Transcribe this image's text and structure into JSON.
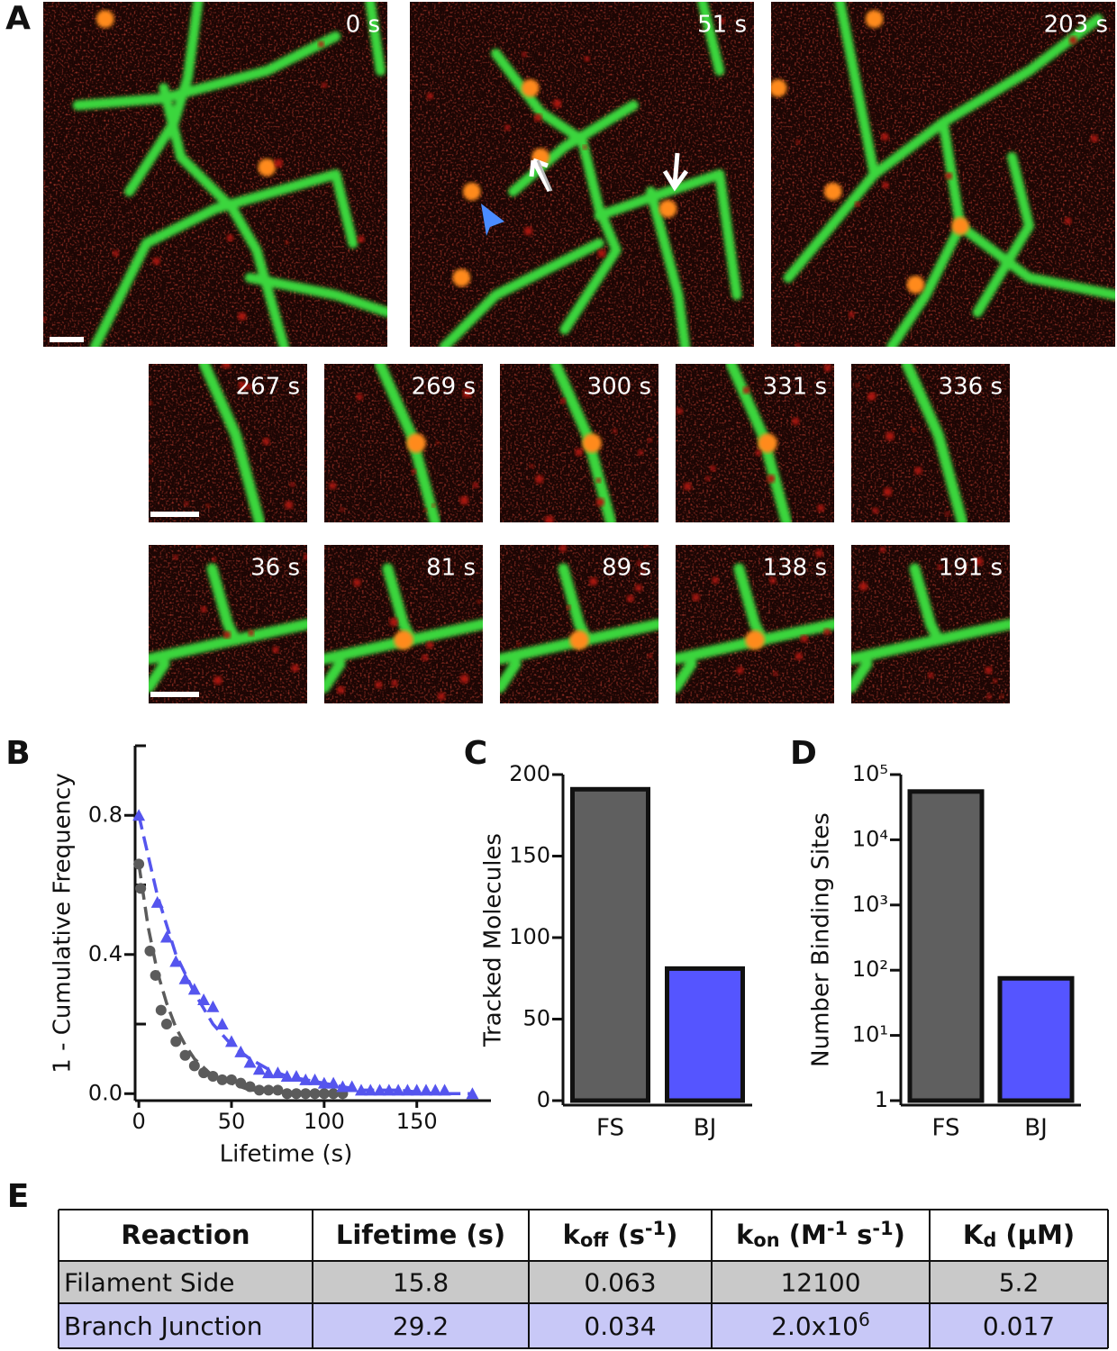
{
  "panels": [
    "A",
    "B",
    "C",
    "D",
    "E"
  ],
  "images": {
    "row1": [
      "0 s",
      "51 s",
      "203 s"
    ],
    "row2": [
      "267 s",
      "269 s",
      "300 s",
      "331 s",
      "336 s"
    ],
    "row3": [
      "36 s",
      "81 s",
      "89 s",
      "138 s",
      "191 s"
    ]
  },
  "chart_data": [
    {
      "type": "scatter",
      "x_label": "Lifetime (s)",
      "y_label": "1 - Cumulative Frequency",
      "xlim": [
        -2,
        190
      ],
      "xticks": [
        0,
        50,
        100,
        150
      ],
      "ylim": [
        -0.02,
        1.0
      ],
      "yticks": [
        {
          "value": 0,
          "label": "0.0"
        },
        0.4,
        0.8
      ],
      "yminorticks": [
        0.2,
        0.6,
        1.0
      ],
      "series": [
        {
          "color": "#5b5b5b",
          "marker": "circle",
          "x": [
            0,
            1,
            6,
            9,
            12,
            15,
            20,
            25,
            30,
            35,
            40,
            45,
            50,
            55,
            60,
            65,
            70,
            75,
            80,
            85,
            90,
            95,
            100,
            105,
            110
          ],
          "values": [
            0.66,
            0.59,
            0.41,
            0.34,
            0.24,
            0.2,
            0.15,
            0.11,
            0.08,
            0.06,
            0.05,
            0.04,
            0.04,
            0.03,
            0.02,
            0.01,
            0.01,
            0.01,
            0,
            0,
            0,
            0,
            0,
            0,
            0
          ]
        },
        {
          "color": "#5555ee",
          "marker": "triangle",
          "x": [
            0,
            10,
            15,
            20,
            25,
            30,
            35,
            40,
            45,
            50,
            55,
            60,
            65,
            70,
            75,
            80,
            85,
            90,
            95,
            100,
            105,
            110,
            115,
            120,
            125,
            130,
            135,
            140,
            145,
            150,
            155,
            160,
            165,
            180
          ],
          "values": [
            0.8,
            0.55,
            0.45,
            0.38,
            0.33,
            0.3,
            0.27,
            0.25,
            0.2,
            0.15,
            0.12,
            0.09,
            0.07,
            0.06,
            0.06,
            0.05,
            0.05,
            0.04,
            0.04,
            0.03,
            0.03,
            0.02,
            0.02,
            0.01,
            0.01,
            0.01,
            0.01,
            0.01,
            0.01,
            0.01,
            0.01,
            0.01,
            0.01,
            0
          ]
        },
        {
          "color": "#5b5b5b",
          "style": "dashed",
          "x": [
            0,
            5,
            10,
            15,
            20,
            25,
            30,
            40,
            50,
            60,
            70,
            80
          ],
          "values": [
            0.66,
            0.48,
            0.35,
            0.26,
            0.19,
            0.14,
            0.1,
            0.05,
            0.03,
            0.01,
            0.01,
            0
          ]
        },
        {
          "color": "#5555ee",
          "style": "dashed",
          "x": [
            0,
            10,
            20,
            30,
            40,
            50,
            60,
            70,
            80,
            90,
            100,
            120,
            140,
            160,
            180
          ],
          "values": [
            0.8,
            0.57,
            0.4,
            0.29,
            0.2,
            0.14,
            0.1,
            0.07,
            0.05,
            0.04,
            0.03,
            0.01,
            0.01,
            0,
            0
          ]
        }
      ]
    },
    {
      "type": "bar",
      "y_label": "Tracked Molecules",
      "categories": [
        "FS",
        "BJ"
      ],
      "values": [
        191,
        81
      ],
      "colors": [
        "#5f5f5f",
        "#5555ff"
      ],
      "ylim": [
        0,
        200
      ],
      "yticks": [
        0,
        50,
        100,
        150,
        200
      ]
    },
    {
      "type": "bar",
      "log_scale": true,
      "y_label": "Number Binding Sites",
      "categories": [
        "FS",
        "BJ"
      ],
      "values": [
        55000,
        75
      ],
      "colors": [
        "#5f5f5f",
        "#5555ff"
      ],
      "ylim": [
        1,
        100000
      ],
      "yticks": [
        1,
        {
          "value": 10,
          "label": "10¹"
        },
        {
          "value": 100,
          "label": "10²"
        },
        {
          "value": 1000,
          "label": "10³"
        },
        {
          "value": 10000,
          "label": "10⁴"
        },
        {
          "value": 100000,
          "label": "10⁵"
        }
      ]
    }
  ],
  "table": {
    "header": [
      [
        {
          "text": "Reaction"
        }
      ],
      [
        {
          "text": "Lifetime (s)"
        }
      ],
      [
        {
          "text": "k"
        },
        {
          "text": "off",
          "pos": "sub"
        },
        {
          "text": " (s"
        },
        {
          "text": "-1",
          "pos": "sup"
        },
        {
          "text": ")"
        }
      ],
      [
        {
          "text": "k"
        },
        {
          "text": "on",
          "pos": "sub"
        },
        {
          "text": " (M"
        },
        {
          "text": "-1",
          "pos": "sup"
        },
        {
          "text": " s"
        },
        {
          "text": "-1",
          "pos": "sup"
        },
        {
          "text": ")"
        }
      ],
      [
        {
          "text": "K"
        },
        {
          "text": "d",
          "pos": "sub"
        },
        {
          "text": " (µM)"
        }
      ]
    ],
    "rows": [
      [
        "Filament Side",
        "15.8",
        "0.063",
        "12100",
        "5.2"
      ],
      [
        "Branch Junction",
        "29.2",
        "0.034",
        [
          {
            "text": "2.0x10"
          },
          {
            "text": "6",
            "pos": "sup"
          }
        ],
        "0.017"
      ]
    ],
    "row_colors": [
      "#c9c9c9",
      "#c8c8f7"
    ]
  }
}
